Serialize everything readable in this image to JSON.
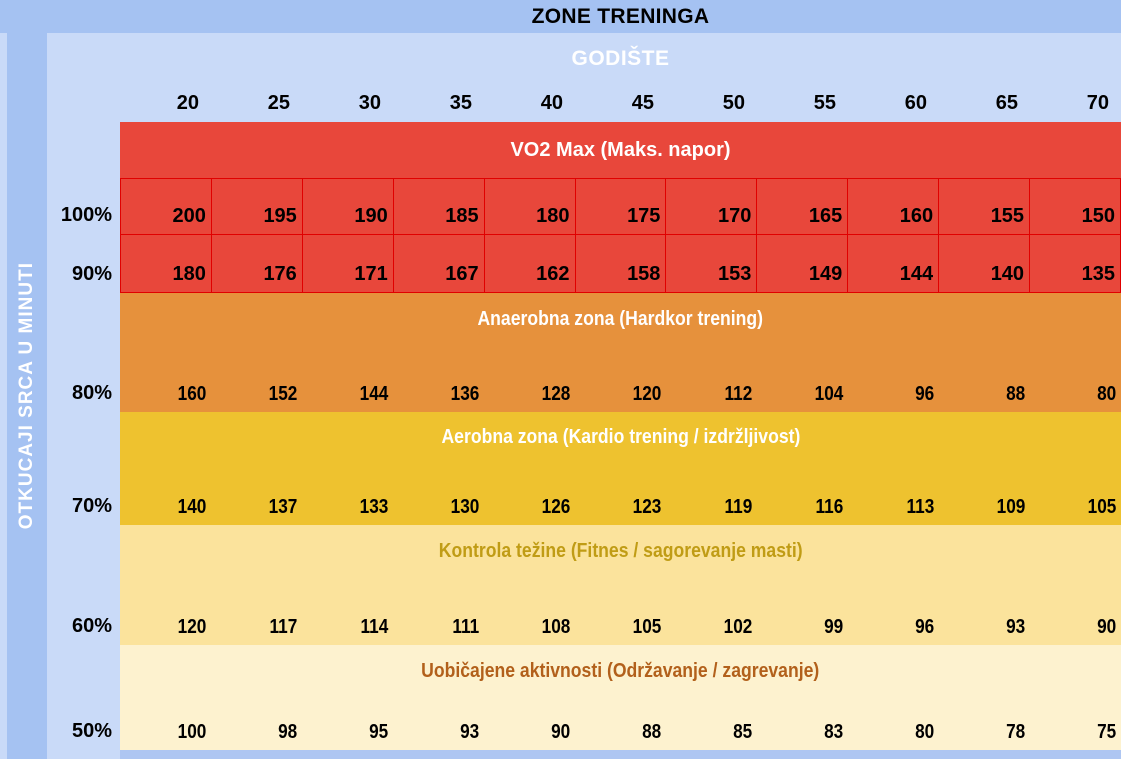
{
  "title": "ZONE TRENINGA",
  "age_header": "GODIŠTE",
  "y_axis_label": "OTKUCAJI SRCA U MINUTI",
  "colors": {
    "band_blue": "#a5c2f2",
    "light_blue": "#c9daf8",
    "bottom_strip_blue": "#aec6f2",
    "red_zone": "#e8473b",
    "red_border": "#e00000",
    "orange_zone": "#e6913c",
    "gold_zone": "#eec22f",
    "pale_yellow_zone": "#fbe39c",
    "cream_zone": "#fdf2cf",
    "kontrola_text": "#c09c15",
    "uobicajene_text": "#b2601b"
  },
  "zones": [
    {
      "title": "VO2 Max (Maks. napor)",
      "bg": "#e8473b",
      "title_color": "#ffffff",
      "condensed": false,
      "rows": [
        "100%",
        "90%"
      ]
    },
    {
      "title": "Anaerobna zona (Hardkor trening)",
      "bg": "#e6913c",
      "title_color": "#ffffff",
      "condensed": true,
      "rows": [
        "80%"
      ]
    },
    {
      "title": "Aerobna zona (Kardio trening / izdržljivost)",
      "bg": "#eec22f",
      "title_color": "#ffffff",
      "condensed": true,
      "rows": [
        "70%"
      ]
    },
    {
      "title": "Kontrola težine (Fitnes / sagorevanje masti)",
      "bg": "#fbe39c",
      "title_color": "#c09c15",
      "condensed": true,
      "rows": [
        "60%"
      ]
    },
    {
      "title": "Uobičajene aktivnosti (Održavanje / zagrevanje)",
      "bg": "#fdf2cf",
      "title_color": "#b2601b",
      "condensed": true,
      "rows": [
        "50%"
      ]
    }
  ],
  "chart_data": {
    "type": "table",
    "title": "ZONE TRENINGA",
    "x_header": "GODIŠTE",
    "xlabel": "Godište (age, years)",
    "ylabel": "OTKUCAJI SRCA U MINUTI",
    "categories": [
      20,
      25,
      30,
      35,
      40,
      45,
      50,
      55,
      60,
      65,
      70
    ],
    "series": [
      {
        "name": "100%",
        "zone": "VO2 Max (Maks. napor)",
        "values": [
          200,
          195,
          190,
          185,
          180,
          175,
          170,
          165,
          160,
          155,
          150
        ]
      },
      {
        "name": "90%",
        "zone": "VO2 Max (Maks. napor)",
        "values": [
          180,
          176,
          171,
          167,
          162,
          158,
          153,
          149,
          144,
          140,
          135
        ]
      },
      {
        "name": "80%",
        "zone": "Anaerobna zona (Hardkor trening)",
        "values": [
          160,
          152,
          144,
          136,
          128,
          120,
          112,
          104,
          96,
          88,
          80
        ]
      },
      {
        "name": "70%",
        "zone": "Aerobna zona (Kardio trening / izdržljivost)",
        "values": [
          140,
          137,
          133,
          130,
          126,
          123,
          119,
          116,
          113,
          109,
          105
        ]
      },
      {
        "name": "60%",
        "zone": "Kontrola težine (Fitnes / sagorevanje masti)",
        "values": [
          120,
          117,
          114,
          111,
          108,
          105,
          102,
          99,
          96,
          93,
          90
        ]
      },
      {
        "name": "50%",
        "zone": "Uobičajene aktivnosti (Održavanje / zagrevanje)",
        "values": [
          100,
          98,
          95,
          93,
          90,
          88,
          85,
          83,
          80,
          78,
          75
        ]
      }
    ]
  }
}
